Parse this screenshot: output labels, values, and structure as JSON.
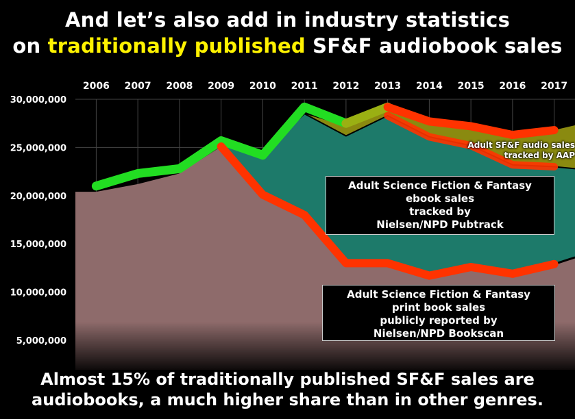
{
  "title": {
    "line1": "And let’s also add in industry statistics",
    "line2_pre": "on ",
    "line2_highlight": "traditionally published",
    "line2_post": " SF&F audiobook sales"
  },
  "caption": {
    "line1": "Almost 15% of traditionally published SF&F sales are",
    "line2": "audiobooks, a much higher share than in other genres."
  },
  "annotations": {
    "audio_line1": "Adult SF&F audio sales",
    "audio_line2": "tracked by AAP",
    "ebook": [
      "Adult Science Fiction & Fantasy",
      "ebook sales",
      "tracked by",
      "Nielsen/NPD Pubtrack"
    ],
    "print": [
      "Adult Science Fiction & Fantasy",
      "print book sales",
      "publicly reported by",
      "Nielsen/NPD Bookscan"
    ]
  },
  "colors": {
    "print_area": "#8e6b6b",
    "ebook_area": "#1d7a6a",
    "audio_area": "#8a8a10",
    "total_line": "#22dd22",
    "print_line": "#ff3300",
    "background": "#000000"
  },
  "chart_data": {
    "type": "area",
    "title": "",
    "xlabel": "",
    "ylabel": "",
    "x_ticks": [
      "2006",
      "2007",
      "2008",
      "2009",
      "2010",
      "2011",
      "2012",
      "2013",
      "2014",
      "2015",
      "2016",
      "2017"
    ],
    "y_ticks": [
      "30,000,000",
      "25,000,000",
      "20,000,000",
      "15,000,000",
      "10,000,000",
      "5,000,000"
    ],
    "y_tick_values": [
      30000000,
      25000000,
      20000000,
      15000000,
      10000000,
      5000000
    ],
    "xlim": [
      2005.5,
      2017.5
    ],
    "ylim": [
      0,
      30000000
    ],
    "series": [
      {
        "name": "Print book sales (Nielsen/NPD Bookscan)",
        "values": [
          20400000,
          21200000,
          22300000,
          25100000,
          20100000,
          18000000,
          13000000,
          13000000,
          11700000,
          12600000,
          11900000,
          12900000
        ]
      },
      {
        "name": "Print + ebook sales (Nielsen/NPD Pubtrack)",
        "values": [
          null,
          null,
          null,
          25300000,
          24300000,
          28500000,
          26200000,
          28300000,
          26100000,
          25200000,
          23200000,
          23000000
        ]
      },
      {
        "name": "Print + ebook + audio sales (AAP)",
        "values": [
          null,
          null,
          null,
          null,
          null,
          null,
          27200000,
          29200000,
          27700000,
          27200000,
          26300000,
          26800000
        ]
      },
      {
        "name": "Total trend (green)",
        "values": [
          21000000,
          22300000,
          22800000,
          25700000,
          24200000,
          29200000,
          27500000,
          null,
          null,
          null,
          null,
          null
        ]
      }
    ]
  }
}
